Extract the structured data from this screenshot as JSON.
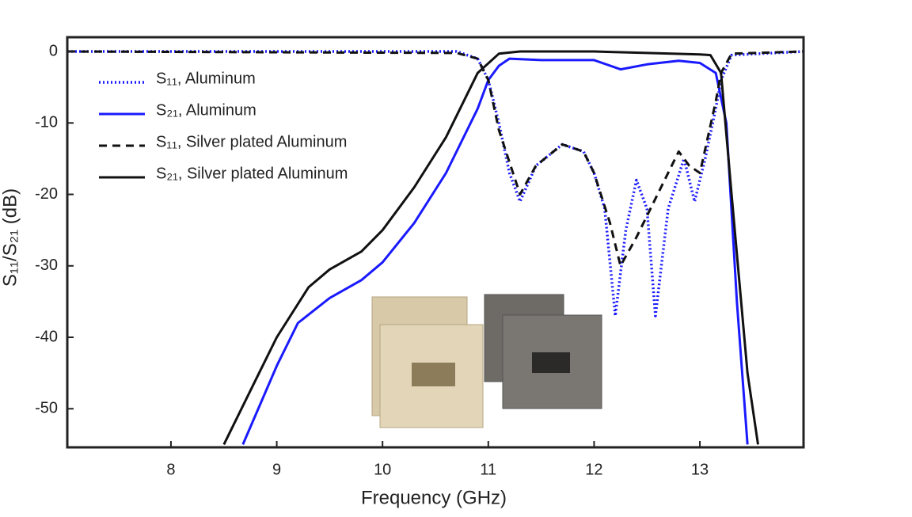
{
  "chart_data": {
    "type": "line",
    "x_label": "Frequency (GHz)",
    "y_label": "S₁₁/S₂₁ (dB)",
    "xlim": [
      7.02,
      13.98
    ],
    "ylim": [
      -55.4,
      2
    ],
    "xticks": [
      8,
      9,
      10,
      11,
      12,
      13
    ],
    "yticks": [
      0,
      -10,
      -20,
      -30,
      -40,
      -50
    ],
    "grid": false,
    "legend": "upper left",
    "series": [
      {
        "name": "S₁₁, Aluminum",
        "color": "#1a1aff",
        "style": "dotted",
        "x": [
          7.02,
          10.7,
          10.9,
          11.0,
          11.1,
          11.2,
          11.3,
          11.45,
          11.7,
          11.9,
          12.0,
          12.1,
          12.2,
          12.3,
          12.4,
          12.5,
          12.58,
          12.7,
          12.85,
          12.95,
          13.05,
          13.15,
          13.2,
          13.3,
          13.98
        ],
        "values": [
          0,
          0,
          -1,
          -4,
          -10,
          -17,
          -21,
          -16,
          -13,
          -14,
          -17,
          -22,
          -37,
          -25,
          -18,
          -22,
          -37,
          -22,
          -15,
          -21,
          -15,
          -8,
          -4,
          -0.5,
          0
        ]
      },
      {
        "name": "S₂₁, Aluminum",
        "color": "#1a1aff",
        "style": "solid",
        "x": [
          8.68,
          9.0,
          9.2,
          9.5,
          9.8,
          10.0,
          10.3,
          10.6,
          10.9,
          11.0,
          11.1,
          11.2,
          11.5,
          12.0,
          12.25,
          12.5,
          12.8,
          13.0,
          13.15,
          13.25,
          13.35,
          13.45
        ],
        "values": [
          -55,
          -44,
          -38,
          -34.5,
          -32,
          -29.5,
          -24,
          -17,
          -8,
          -4,
          -2,
          -1,
          -1.2,
          -1.2,
          -2.5,
          -1.8,
          -1.3,
          -1.6,
          -3,
          -10,
          -35,
          -55
        ]
      },
      {
        "name": "S₁₁, Silver plated Aluminum",
        "color": "#111111",
        "style": "dashed",
        "x": [
          7.02,
          10.7,
          10.9,
          11.0,
          11.1,
          11.3,
          11.45,
          11.7,
          11.9,
          12.0,
          12.15,
          12.25,
          12.4,
          12.6,
          12.8,
          12.9,
          13.0,
          13.15,
          13.2,
          13.3,
          13.98
        ],
        "values": [
          0,
          -0.2,
          -1,
          -4,
          -11,
          -20,
          -16,
          -13,
          -14,
          -17,
          -24,
          -30,
          -26,
          -20,
          -14,
          -16,
          -17,
          -7,
          -3,
          -0.3,
          0
        ]
      },
      {
        "name": "S₂₁, Silver plated Aluminum",
        "color": "#111111",
        "style": "solid",
        "x": [
          8.5,
          8.8,
          9.0,
          9.3,
          9.5,
          9.8,
          10.0,
          10.3,
          10.6,
          10.9,
          11.1,
          11.3,
          12.0,
          12.5,
          13.0,
          13.1,
          13.2,
          13.3,
          13.45,
          13.55
        ],
        "values": [
          -55,
          -46,
          -40,
          -33,
          -30.5,
          -28,
          -25,
          -19,
          -12,
          -3,
          -0.3,
          0,
          0,
          -0.2,
          -0.4,
          -0.5,
          -3,
          -20,
          -45,
          -55
        ]
      }
    ]
  }
}
